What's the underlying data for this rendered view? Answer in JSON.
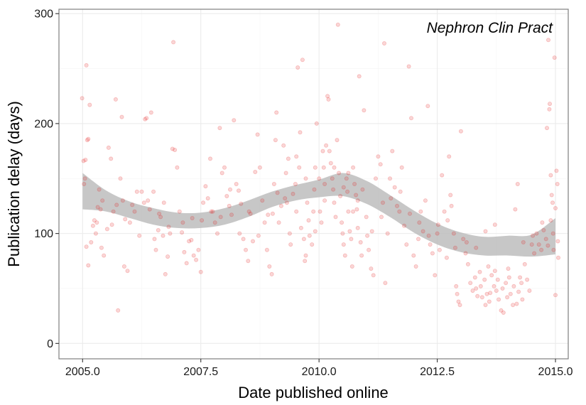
{
  "chart_data": {
    "type": "scatter",
    "title": "",
    "annotation": "Nephron Clin Pract",
    "xlabel": "Date published online",
    "ylabel": "Publication delay (days)",
    "xlim": [
      2004.5,
      2015.27
    ],
    "ylim": [
      -14,
      304
    ],
    "x_ticks": [
      2005.0,
      2007.5,
      2010.0,
      2012.5,
      2015.0
    ],
    "x_tick_labels": [
      "2005.0",
      "2007.5",
      "2010.0",
      "2012.5",
      "2015.0"
    ],
    "y_ticks": [
      0,
      100,
      200,
      300
    ],
    "y_tick_labels": [
      "0",
      "100",
      "200",
      "300"
    ],
    "grid": true,
    "point_color": "#e41a1c",
    "point_alpha": 0.18,
    "band_color": "#bdbdbd",
    "smooth_band": {
      "x": [
        2005.0,
        2005.5,
        2006.0,
        2006.5,
        2007.0,
        2007.5,
        2008.0,
        2008.5,
        2009.0,
        2009.5,
        2010.0,
        2010.5,
        2011.0,
        2011.5,
        2012.0,
        2012.5,
        2013.0,
        2013.5,
        2014.0,
        2014.5,
        2015.0
      ],
      "lower": [
        122,
        120,
        114,
        108,
        105,
        105,
        108,
        115,
        124,
        130,
        133,
        134,
        127,
        115,
        101,
        90,
        83,
        80,
        80,
        79,
        81
      ],
      "upper": [
        155,
        139,
        129,
        123,
        119,
        119,
        123,
        130,
        138,
        144,
        149,
        155,
        148,
        135,
        121,
        109,
        101,
        97,
        98,
        99,
        114
      ]
    },
    "points": [
      [
        2004.99,
        223
      ],
      [
        2005.08,
        253
      ],
      [
        2005.15,
        217
      ],
      [
        2005.05,
        150
      ],
      [
        2005.02,
        166
      ],
      [
        2005.03,
        145
      ],
      [
        2005.06,
        167
      ],
      [
        2005.1,
        185
      ],
      [
        2005.12,
        186
      ],
      [
        2005.08,
        88
      ],
      [
        2005.12,
        71
      ],
      [
        2005.18,
        92
      ],
      [
        2005.3,
        110
      ],
      [
        2005.25,
        112
      ],
      [
        2005.22,
        107
      ],
      [
        2005.28,
        100
      ],
      [
        2005.35,
        140
      ],
      [
        2005.38,
        122
      ],
      [
        2005.4,
        87
      ],
      [
        2005.45,
        80
      ],
      [
        2005.55,
        178
      ],
      [
        2005.6,
        168
      ],
      [
        2005.7,
        222
      ],
      [
        2005.65,
        120
      ],
      [
        2005.75,
        30
      ],
      [
        2005.8,
        150
      ],
      [
        2005.83,
        206
      ],
      [
        2005.85,
        130
      ],
      [
        2005.9,
        113
      ],
      [
        2005.88,
        70
      ],
      [
        2005.95,
        66
      ],
      [
        2006.0,
        110
      ],
      [
        2006.1,
        120
      ],
      [
        2006.15,
        138
      ],
      [
        2006.2,
        98
      ],
      [
        2006.25,
        138
      ],
      [
        2006.3,
        128
      ],
      [
        2006.32,
        204
      ],
      [
        2006.35,
        205
      ],
      [
        2006.38,
        130
      ],
      [
        2006.45,
        210
      ],
      [
        2006.5,
        138
      ],
      [
        2006.52,
        95
      ],
      [
        2006.55,
        85
      ],
      [
        2006.6,
        103
      ],
      [
        2006.65,
        115
      ],
      [
        2006.7,
        98
      ],
      [
        2006.75,
        63
      ],
      [
        2006.8,
        79
      ],
      [
        2006.85,
        100
      ],
      [
        2006.9,
        177
      ],
      [
        2006.92,
        274
      ],
      [
        2006.95,
        176
      ],
      [
        2007.0,
        160
      ],
      [
        2007.05,
        120
      ],
      [
        2007.1,
        101
      ],
      [
        2007.15,
        83
      ],
      [
        2007.2,
        73
      ],
      [
        2007.25,
        93
      ],
      [
        2007.3,
        94
      ],
      [
        2007.35,
        80
      ],
      [
        2007.4,
        76
      ],
      [
        2007.45,
        85
      ],
      [
        2007.5,
        65
      ],
      [
        2007.55,
        128
      ],
      [
        2007.6,
        143
      ],
      [
        2007.65,
        132
      ],
      [
        2007.7,
        168
      ],
      [
        2007.75,
        120
      ],
      [
        2007.8,
        110
      ],
      [
        2007.85,
        100
      ],
      [
        2007.9,
        196
      ],
      [
        2007.95,
        155
      ],
      [
        2008.0,
        160
      ],
      [
        2008.05,
        134
      ],
      [
        2008.1,
        125
      ],
      [
        2008.15,
        117
      ],
      [
        2008.2,
        203
      ],
      [
        2008.25,
        145
      ],
      [
        2008.3,
        139
      ],
      [
        2008.35,
        127
      ],
      [
        2008.4,
        95
      ],
      [
        2008.45,
        85
      ],
      [
        2008.5,
        75
      ],
      [
        2008.55,
        118
      ],
      [
        2008.6,
        93
      ],
      [
        2008.65,
        156
      ],
      [
        2008.7,
        190
      ],
      [
        2008.75,
        160
      ],
      [
        2008.8,
        130
      ],
      [
        2008.85,
        110
      ],
      [
        2008.9,
        85
      ],
      [
        2008.95,
        70
      ],
      [
        2009.0,
        63
      ],
      [
        2009.02,
        118
      ],
      [
        2009.05,
        145
      ],
      [
        2009.08,
        185
      ],
      [
        2009.1,
        210
      ],
      [
        2009.12,
        137
      ],
      [
        2009.15,
        110
      ],
      [
        2009.2,
        125
      ],
      [
        2009.25,
        180
      ],
      [
        2009.28,
        132
      ],
      [
        2009.3,
        155
      ],
      [
        2009.35,
        168
      ],
      [
        2009.38,
        100
      ],
      [
        2009.4,
        90
      ],
      [
        2009.45,
        136
      ],
      [
        2009.5,
        145
      ],
      [
        2009.52,
        170
      ],
      [
        2009.55,
        251
      ],
      [
        2009.58,
        160
      ],
      [
        2009.6,
        192
      ],
      [
        2009.62,
        105
      ],
      [
        2009.65,
        258
      ],
      [
        2009.68,
        95
      ],
      [
        2009.7,
        75
      ],
      [
        2009.72,
        80
      ],
      [
        2009.75,
        128
      ],
      [
        2009.78,
        112
      ],
      [
        2009.8,
        98
      ],
      [
        2009.85,
        90
      ],
      [
        2009.88,
        120
      ],
      [
        2009.9,
        140
      ],
      [
        2009.92,
        160
      ],
      [
        2009.95,
        200
      ],
      [
        2010.0,
        150
      ],
      [
        2010.02,
        120
      ],
      [
        2010.05,
        110
      ],
      [
        2010.08,
        175
      ],
      [
        2010.1,
        160
      ],
      [
        2010.12,
        130
      ],
      [
        2010.15,
        180
      ],
      [
        2010.18,
        225
      ],
      [
        2010.2,
        222
      ],
      [
        2010.22,
        175
      ],
      [
        2010.25,
        164
      ],
      [
        2010.28,
        150
      ],
      [
        2010.3,
        140
      ],
      [
        2010.32,
        128
      ],
      [
        2010.35,
        115
      ],
      [
        2010.38,
        185
      ],
      [
        2010.4,
        290
      ],
      [
        2010.42,
        155
      ],
      [
        2010.45,
        134
      ],
      [
        2010.48,
        110
      ],
      [
        2010.5,
        100
      ],
      [
        2010.52,
        90
      ],
      [
        2010.55,
        80
      ],
      [
        2010.58,
        150
      ],
      [
        2010.6,
        138
      ],
      [
        2010.62,
        120
      ],
      [
        2010.65,
        102
      ],
      [
        2010.68,
        95
      ],
      [
        2010.7,
        70
      ],
      [
        2010.72,
        160
      ],
      [
        2010.75,
        145
      ],
      [
        2010.78,
        135
      ],
      [
        2010.8,
        122
      ],
      [
        2010.82,
        105
      ],
      [
        2010.85,
        243
      ],
      [
        2010.88,
        92
      ],
      [
        2010.9,
        80
      ],
      [
        2010.92,
        140
      ],
      [
        2010.95,
        212
      ],
      [
        2011.0,
        115
      ],
      [
        2011.02,
        98
      ],
      [
        2011.05,
        85
      ],
      [
        2011.1,
        68
      ],
      [
        2011.15,
        62
      ],
      [
        2011.2,
        150
      ],
      [
        2011.25,
        170
      ],
      [
        2011.3,
        163
      ],
      [
        2011.35,
        128
      ],
      [
        2011.38,
        273
      ],
      [
        2011.4,
        55
      ],
      [
        2011.45,
        100
      ],
      [
        2011.5,
        150
      ],
      [
        2011.55,
        175
      ],
      [
        2011.6,
        142
      ],
      [
        2011.65,
        125
      ],
      [
        2011.7,
        120
      ],
      [
        2011.75,
        160
      ],
      [
        2011.8,
        107
      ],
      [
        2011.85,
        90
      ],
      [
        2011.9,
        252
      ],
      [
        2011.95,
        205
      ],
      [
        2012.0,
        80
      ],
      [
        2012.05,
        70
      ],
      [
        2012.1,
        95
      ],
      [
        2012.15,
        120
      ],
      [
        2012.2,
        102
      ],
      [
        2012.25,
        130
      ],
      [
        2012.3,
        216
      ],
      [
        2012.35,
        90
      ],
      [
        2012.4,
        82
      ],
      [
        2012.45,
        62
      ],
      [
        2012.5,
        100
      ],
      [
        2012.55,
        85
      ],
      [
        2012.6,
        153
      ],
      [
        2012.65,
        120
      ],
      [
        2012.7,
        78
      ],
      [
        2012.75,
        170
      ],
      [
        2012.78,
        135
      ],
      [
        2012.8,
        125
      ],
      [
        2012.85,
        100
      ],
      [
        2012.88,
        87
      ],
      [
        2012.9,
        52
      ],
      [
        2012.92,
        45
      ],
      [
        2012.95,
        38
      ],
      [
        2012.98,
        35
      ],
      [
        2013.0,
        193
      ],
      [
        2013.05,
        95
      ],
      [
        2013.1,
        82
      ],
      [
        2013.15,
        72
      ],
      [
        2013.2,
        55
      ],
      [
        2013.25,
        48
      ],
      [
        2013.3,
        60
      ],
      [
        2013.35,
        43
      ],
      [
        2013.4,
        65
      ],
      [
        2013.45,
        42
      ],
      [
        2013.5,
        58
      ],
      [
        2013.55,
        45
      ],
      [
        2013.6,
        38
      ],
      [
        2013.65,
        62
      ],
      [
        2013.7,
        52
      ],
      [
        2013.75,
        48
      ],
      [
        2013.8,
        40
      ],
      [
        2013.85,
        30
      ],
      [
        2013.9,
        28
      ],
      [
        2013.95,
        55
      ],
      [
        2014.0,
        68
      ],
      [
        2014.05,
        45
      ],
      [
        2014.1,
        35
      ],
      [
        2014.15,
        122
      ],
      [
        2014.2,
        145
      ],
      [
        2014.25,
        60
      ],
      [
        2014.3,
        40
      ],
      [
        2014.35,
        72
      ],
      [
        2014.4,
        58
      ],
      [
        2014.45,
        48
      ],
      [
        2014.5,
        90
      ],
      [
        2014.55,
        82
      ],
      [
        2014.6,
        100
      ],
      [
        2014.65,
        90
      ],
      [
        2014.7,
        85
      ],
      [
        2014.75,
        103
      ],
      [
        2014.8,
        95
      ],
      [
        2014.82,
        196
      ],
      [
        2014.85,
        276
      ],
      [
        2014.87,
        213
      ],
      [
        2014.88,
        218
      ],
      [
        2014.9,
        153
      ],
      [
        2014.92,
        135
      ],
      [
        2014.94,
        128
      ],
      [
        2014.95,
        100
      ],
      [
        2014.96,
        85
      ],
      [
        2014.98,
        260
      ],
      [
        2015.0,
        123
      ],
      [
        2015.02,
        157
      ],
      [
        2015.04,
        145
      ],
      [
        2015.05,
        93
      ],
      [
        2015.06,
        78
      ],
      [
        2015.0,
        44
      ],
      [
        2013.58,
        70
      ],
      [
        2013.72,
        66
      ],
      [
        2013.88,
        50
      ],
      [
        2014.02,
        60
      ],
      [
        2014.12,
        52
      ],
      [
        2013.42,
        52
      ],
      [
        2013.62,
        46
      ],
      [
        2013.78,
        58
      ],
      [
        2013.98,
        42
      ],
      [
        2014.22,
        47
      ],
      [
        2014.28,
        55
      ],
      [
        2014.18,
        36
      ],
      [
        2013.52,
        35
      ],
      [
        2013.32,
        50
      ],
      [
        2005.32,
        124
      ],
      [
        2005.42,
        130
      ],
      [
        2005.52,
        104
      ],
      [
        2005.62,
        108
      ],
      [
        2005.72,
        126
      ],
      [
        2006.05,
        126
      ],
      [
        2006.42,
        122
      ],
      [
        2006.62,
        118
      ],
      [
        2006.72,
        128
      ],
      [
        2006.82,
        106
      ],
      [
        2007.12,
        110
      ],
      [
        2007.32,
        114
      ],
      [
        2007.52,
        112
      ],
      [
        2007.72,
        120
      ],
      [
        2007.92,
        115
      ],
      [
        2008.12,
        140
      ],
      [
        2008.32,
        100
      ],
      [
        2008.52,
        120
      ],
      [
        2008.72,
        98
      ],
      [
        2008.92,
        117
      ],
      [
        2009.32,
        128
      ],
      [
        2009.52,
        120
      ],
      [
        2009.72,
        150
      ],
      [
        2009.92,
        102
      ],
      [
        2010.12,
        145
      ],
      [
        2010.32,
        160
      ],
      [
        2010.52,
        142
      ],
      [
        2010.62,
        155
      ],
      [
        2010.72,
        120
      ],
      [
        2010.82,
        130
      ],
      [
        2011.12,
        102
      ],
      [
        2011.32,
        115
      ],
      [
        2011.52,
        132
      ],
      [
        2011.72,
        138
      ],
      [
        2011.92,
        118
      ],
      [
        2012.12,
        110
      ],
      [
        2012.32,
        98
      ],
      [
        2012.52,
        108
      ],
      [
        2012.72,
        112
      ],
      [
        2013.12,
        92
      ],
      [
        2013.32,
        87
      ],
      [
        2013.52,
        102
      ],
      [
        2013.72,
        108
      ],
      [
        2014.32,
        92
      ],
      [
        2014.52,
        98
      ],
      [
        2014.72,
        110
      ],
      [
        2014.84,
        89
      ],
      [
        2014.9,
        112
      ]
    ]
  }
}
